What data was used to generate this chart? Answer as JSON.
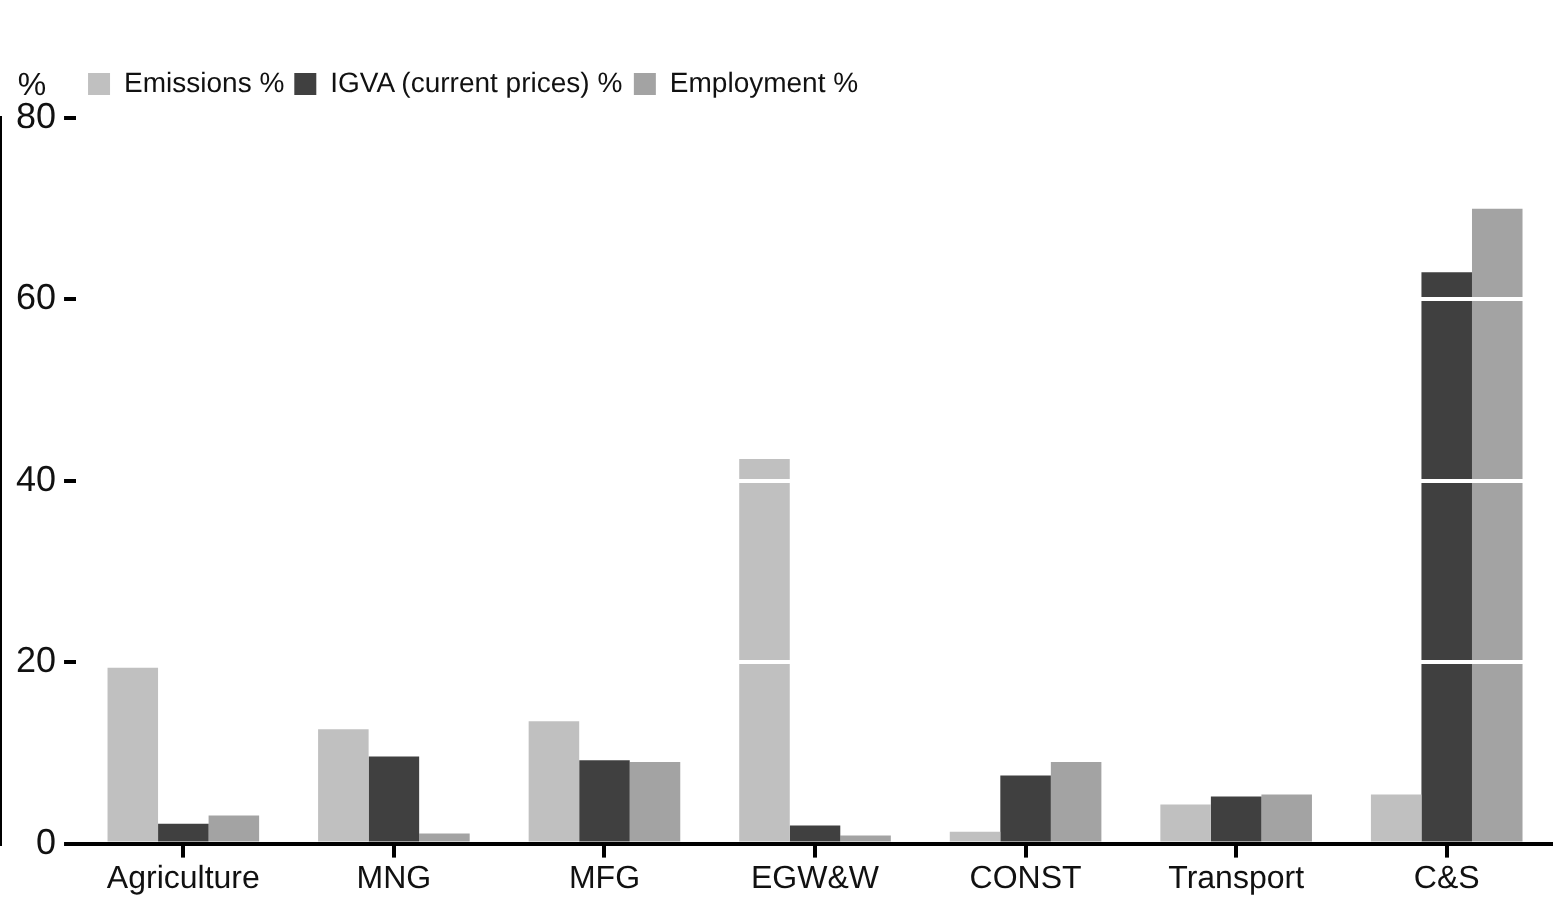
{
  "chart_data": {
    "type": "bar",
    "ylabel": "%",
    "categories": [
      "Agriculture",
      "MNG",
      "MFG",
      "EGW&W",
      "CONST",
      "Transport",
      "C&S"
    ],
    "series": [
      {
        "name": "Emissions %",
        "color": "#c0c0c0",
        "values": [
          19.4,
          12.6,
          13.5,
          42.4,
          1.3,
          4.3,
          5.4
        ]
      },
      {
        "name": "IGVA (current prices) %",
        "color": "#404040",
        "values": [
          2.2,
          9.6,
          9.2,
          2.0,
          7.5,
          5.2,
          63.0
        ]
      },
      {
        "name": "Employment %",
        "color": "#a3a3a3",
        "values": [
          3.1,
          1.1,
          9.0,
          0.9,
          9.0,
          5.4,
          70.0
        ]
      }
    ],
    "ylim": [
      0,
      80
    ],
    "yticks": [
      0,
      20,
      40,
      60,
      80
    ],
    "grid": "y",
    "legend": "top left"
  }
}
